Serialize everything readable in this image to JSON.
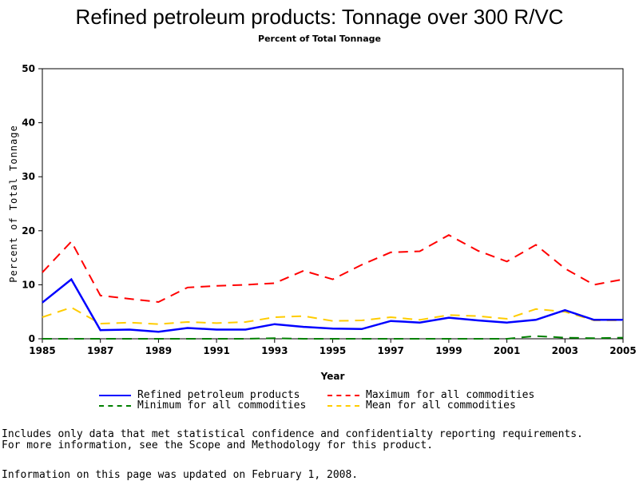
{
  "chart_data": {
    "type": "line",
    "title": "Refined petroleum products: Tonnage over 300 R/VC",
    "subtitle": "Percent of Total Tonnage",
    "xlabel": "Year",
    "ylabel": "Percent of Total Tonnage",
    "xlim": [
      1985,
      2005
    ],
    "ylim": [
      0,
      50
    ],
    "x_ticks": [
      "1985",
      "1987",
      "1989",
      "1991",
      "1993",
      "1995",
      "1997",
      "1999",
      "2001",
      "2003",
      "2005"
    ],
    "y_ticks": [
      "0",
      "10",
      "20",
      "30",
      "40",
      "50"
    ],
    "grid": false,
    "legend_position": "bottom",
    "x": [
      1985,
      1986,
      1987,
      1988,
      1989,
      1990,
      1991,
      1992,
      1993,
      1994,
      1995,
      1996,
      1997,
      1998,
      1999,
      2000,
      2001,
      2002,
      2003,
      2004,
      2005
    ],
    "series": [
      {
        "name": "Refined petroleum products",
        "color": "#0000ff",
        "style": "solid",
        "values": [
          6.7,
          11.0,
          1.6,
          1.7,
          1.3,
          2.0,
          1.7,
          1.7,
          2.7,
          2.2,
          1.9,
          1.8,
          3.3,
          3.0,
          3.9,
          3.4,
          3.0,
          3.5,
          5.3,
          3.5,
          3.5
        ]
      },
      {
        "name": "Maximum for all commodities",
        "color": "#ff0000",
        "style": "dashed",
        "values": [
          12.3,
          18.0,
          8.0,
          7.4,
          6.8,
          9.5,
          9.8,
          10.0,
          10.3,
          12.6,
          11.0,
          13.7,
          16.0,
          16.2,
          19.2,
          16.3,
          14.3,
          17.4,
          13.0,
          10.0,
          11.0
        ]
      },
      {
        "name": "Minimum for all commodities",
        "color": "#008000",
        "style": "dashed",
        "values": [
          0.0,
          0.0,
          0.0,
          0.0,
          0.0,
          0.0,
          0.0,
          0.0,
          0.1,
          0.0,
          0.0,
          0.0,
          0.0,
          0.0,
          0.0,
          0.0,
          0.0,
          0.5,
          0.2,
          0.1,
          0.2
        ]
      },
      {
        "name": "Mean for all commodities",
        "color": "#ffcc00",
        "style": "dashed",
        "values": [
          4.0,
          5.8,
          2.8,
          3.0,
          2.7,
          3.1,
          2.9,
          3.1,
          4.0,
          4.2,
          3.3,
          3.4,
          4.0,
          3.5,
          4.4,
          4.2,
          3.7,
          5.5,
          5.0,
          3.4,
          3.4
        ]
      }
    ]
  },
  "footnotes": {
    "line1": "Includes only data that met statistical confidence and confidentialty reporting requirements.",
    "line2": "For more information, see the Scope and Methodology for this product.",
    "line3": "Information on this page was updated on February 1, 2008."
  }
}
